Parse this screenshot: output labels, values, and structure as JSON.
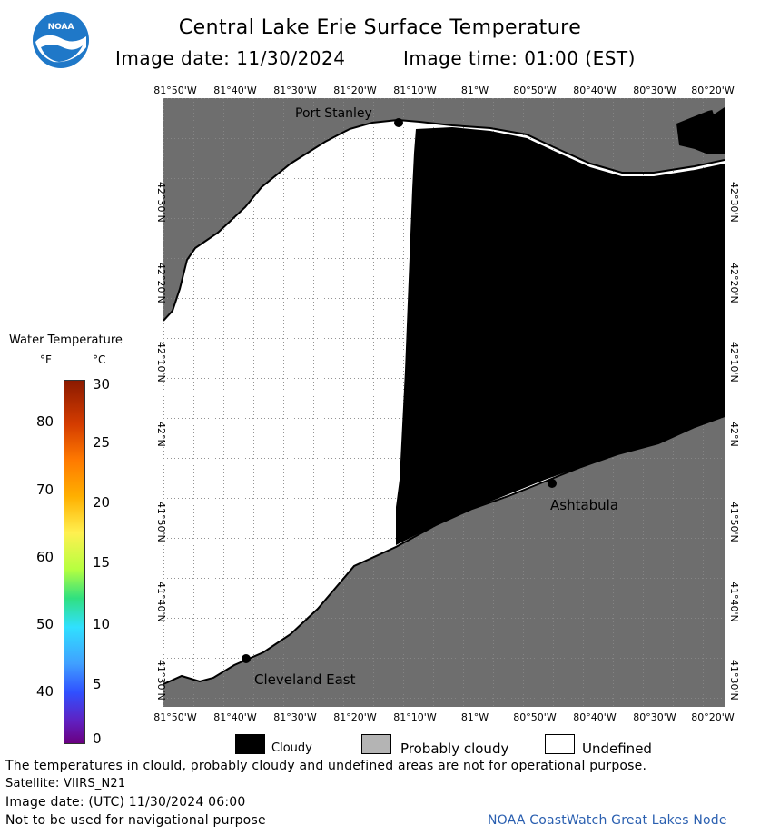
{
  "header": {
    "title": "Central Lake Erie Surface Temperature",
    "image_date": "Image date: 11/30/2024",
    "image_time": "Image time: 01:00 (EST)"
  },
  "logo": {
    "text": "NOAA"
  },
  "axes": {
    "longitude_labels": [
      "81°50'W",
      "81°40'W",
      "81°30'W",
      "81°20'W",
      "81°10'W",
      "81°W",
      "80°50'W",
      "80°40'W",
      "80°30'W",
      "80°20'W"
    ],
    "latitude_labels": [
      "42°30'N",
      "42°20'N",
      "42°10'N",
      "42°N",
      "41°50'N",
      "41°40'N",
      "41°30'N"
    ]
  },
  "places": {
    "port_stanley": "Port Stanley",
    "cleveland_east": "Cleveland East",
    "ashtabula": "Ashtabula"
  },
  "colorbar": {
    "title": "Water Temperature",
    "unit_f": "°F",
    "unit_c": "°C",
    "f_ticks": [
      "80",
      "70",
      "60",
      "50",
      "40"
    ],
    "c_ticks": [
      "30",
      "25",
      "20",
      "15",
      "10",
      "5",
      "0"
    ]
  },
  "legend": {
    "cloudy": "Cloudy",
    "probably_cloudy": "Probably cloudy",
    "undefined": "Undefined"
  },
  "colors": {
    "land": "#6e6e6e",
    "cloudy": "#000000",
    "probably_cloudy": "#b4b4b4",
    "undefined": "#ffffff"
  },
  "footer": {
    "note": "The temperatures in clould, probably cloudy and undefined areas are not for operational purpose.",
    "satellite": "Satellite: VIIRS_N21",
    "utc_date": "Image date: (UTC) 11/30/2024  06:00",
    "nav_warning": "Not to be used for navigational purpose",
    "credit": "NOAA CoastWatch Great Lakes Node"
  }
}
